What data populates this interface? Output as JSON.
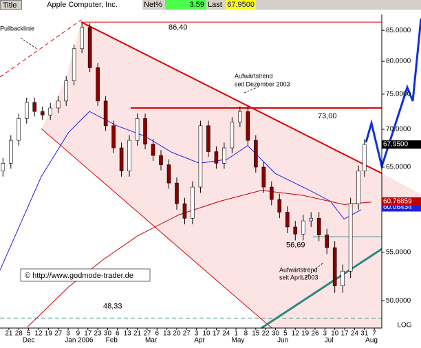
{
  "chart_data": {
    "type": "candlestick",
    "title": "Apple Computer, Inc.",
    "header_label": "Title",
    "net_label": "Net%",
    "net": 3.59,
    "last_label": "Last",
    "last": {
      "value": 67.95,
      "label": "67.9500"
    },
    "copyright": "© http://www.godmode-trader.de",
    "scale_label": "LOG",
    "log_scale": true,
    "annotations": [
      "Pullbacklinie",
      "Aufwärtstrend",
      "seit Dezember 2003",
      "Aufwärtstrend",
      "seit April 2003"
    ],
    "xlim": [
      -4.5,
      188.8
    ],
    "ylim": [
      47.4,
      87.7
    ],
    "yticks": [
      {
        "value": 85,
        "label": "85.0000"
      },
      {
        "value": 80,
        "label": "80.0000"
      },
      {
        "value": 75,
        "label": "75.0000"
      },
      {
        "value": 70,
        "label": "70.0000"
      },
      {
        "value": 65,
        "label": "65.0000"
      },
      {
        "value": 55,
        "label": "55.0000"
      },
      {
        "value": 50,
        "label": "50.0000"
      }
    ],
    "xticks": [
      {
        "value": 0,
        "label": "21"
      },
      {
        "value": 5,
        "label": "28"
      },
      {
        "value": 10,
        "label": "5"
      },
      {
        "value": 15,
        "label": "12"
      },
      {
        "value": 20,
        "label": "19"
      },
      {
        "value": 25,
        "label": "27"
      },
      {
        "value": 30,
        "label": "3"
      },
      {
        "value": 35,
        "label": "9"
      },
      {
        "value": 40,
        "label": "17"
      },
      {
        "value": 45,
        "label": "23"
      },
      {
        "value": 50,
        "label": "30"
      },
      {
        "value": 55,
        "label": "6"
      },
      {
        "value": 60,
        "label": "13"
      },
      {
        "value": 65,
        "label": "21"
      },
      {
        "value": 70,
        "label": "27"
      },
      {
        "value": 75,
        "label": "6"
      },
      {
        "value": 80,
        "label": "13"
      },
      {
        "value": 85,
        "label": "20"
      },
      {
        "value": 90,
        "label": "27"
      },
      {
        "value": 95,
        "label": "3"
      },
      {
        "value": 100,
        "label": "10"
      },
      {
        "value": 105,
        "label": "17"
      },
      {
        "value": 110,
        "label": "24"
      },
      {
        "value": 115,
        "label": "1"
      },
      {
        "value": 120,
        "label": "8"
      },
      {
        "value": 125,
        "label": "15"
      },
      {
        "value": 130,
        "label": "22"
      },
      {
        "value": 135,
        "label": "30"
      },
      {
        "value": 140,
        "label": "5"
      },
      {
        "value": 145,
        "label": "12"
      },
      {
        "value": 150,
        "label": "19"
      },
      {
        "value": 155,
        "label": "26"
      },
      {
        "value": 160,
        "label": "3"
      },
      {
        "value": 165,
        "label": "10"
      },
      {
        "value": 170,
        "label": "17"
      },
      {
        "value": 175,
        "label": "24"
      },
      {
        "value": 180,
        "label": "31"
      },
      {
        "value": 185,
        "label": "7"
      }
    ],
    "month_labels": [
      {
        "value": 10,
        "label": "Dec"
      },
      {
        "value": 35.5,
        "label": "Jan 2006"
      },
      {
        "value": 52,
        "label": "Feb"
      },
      {
        "value": 72,
        "label": "Mar"
      },
      {
        "value": 96.5,
        "label": "Apr"
      },
      {
        "value": 116,
        "label": "May"
      },
      {
        "value": 138.7,
        "label": "Jun"
      },
      {
        "value": 162,
        "label": "Jul"
      },
      {
        "value": 183.6,
        "label": "Aug"
      }
    ],
    "levels": [
      {
        "value": 86.4,
        "label": "86,40",
        "color": "#e00000"
      },
      {
        "value": 73.0,
        "label": "73,00",
        "color": "#e00000"
      },
      {
        "value": 56.69,
        "label": "56,69",
        "color": "#2a8a80"
      },
      {
        "value": 48.33,
        "label": "48,33",
        "color": "#2a8a80"
      }
    ],
    "candles": {
      "up_color": "#ffffff",
      "down_color": "#8b0000",
      "x": [
        -3,
        1,
        5,
        9,
        13,
        17,
        21,
        25,
        29,
        33,
        37,
        41,
        45,
        49,
        53,
        57,
        61,
        65,
        69,
        73,
        77,
        81,
        85,
        89,
        93,
        97,
        101,
        105,
        109,
        113,
        117,
        121,
        125,
        129,
        133,
        137,
        141,
        145,
        149,
        153,
        157,
        161,
        165,
        169,
        173,
        177,
        180
      ],
      "open": [
        64.5,
        65.5,
        68.5,
        71.5,
        73.8,
        72.5,
        72.0,
        73.0,
        74.0,
        77.0,
        82.0,
        85.5,
        79.0,
        74.0,
        70.5,
        67.5,
        64.5,
        68.5,
        71.5,
        68.0,
        66.5,
        65.3,
        63.0,
        60.5,
        58.8,
        62.5,
        70.5,
        67.0,
        65.5,
        67.5,
        71.0,
        72.5,
        68.5,
        65.0,
        62.5,
        61.0,
        59.5,
        57.8,
        57.0,
        58.5,
        58.8,
        56.9,
        55.5,
        51.5,
        53.0,
        60.5,
        64.5
      ],
      "high": [
        66.2,
        69.2,
        72.2,
        74.5,
        74.5,
        73.2,
        73.7,
        74.7,
        77.7,
        82.7,
        86.2,
        86.2,
        79.7,
        74.7,
        71.2,
        68.2,
        69.2,
        72.2,
        72.2,
        68.7,
        67.2,
        66.0,
        63.7,
        61.2,
        63.2,
        71.2,
        71.2,
        67.7,
        68.2,
        71.7,
        73.2,
        73.2,
        69.2,
        65.7,
        63.2,
        61.7,
        60.2,
        58.5,
        59.2,
        59.5,
        59.5,
        57.6,
        56.2,
        53.7,
        61.2,
        65.2,
        68.65
      ],
      "low": [
        63.8,
        64.8,
        67.8,
        70.8,
        71.8,
        71.3,
        71.3,
        72.3,
        73.3,
        76.3,
        81.3,
        78.3,
        73.3,
        69.8,
        66.8,
        63.8,
        63.8,
        67.8,
        67.3,
        65.8,
        64.6,
        62.3,
        59.8,
        58.1,
        58.1,
        61.8,
        66.3,
        64.8,
        64.8,
        66.8,
        70.3,
        67.8,
        64.3,
        61.8,
        60.3,
        58.8,
        57.1,
        56.3,
        56.3,
        57.8,
        56.2,
        54.8,
        50.8,
        50.8,
        52.3,
        59.8,
        63.8
      ],
      "close": [
        65.5,
        68.5,
        71.5,
        73.8,
        72.5,
        72.0,
        73.0,
        74.0,
        77.0,
        82.0,
        85.5,
        79.0,
        74.0,
        70.5,
        67.5,
        64.5,
        68.5,
        71.5,
        68.0,
        66.5,
        65.3,
        63.0,
        60.5,
        58.8,
        62.5,
        70.5,
        67.0,
        65.5,
        67.5,
        71.0,
        72.5,
        68.5,
        65.0,
        62.5,
        61.0,
        59.5,
        57.8,
        57.0,
        58.5,
        58.8,
        56.9,
        55.5,
        51.5,
        53.0,
        60.5,
        64.5,
        67.95
      ]
    },
    "series": [
      {
        "color": "#2020e0",
        "x": [
          -4.5,
          16.4,
          30.3,
          40.8,
          54.7,
          68.6,
          82.6,
          96.5,
          110.5,
          120.9,
          134.8,
          152.3,
          162.7,
          169.7,
          178.4
        ],
        "values": [
          53.1,
          63.8,
          69.6,
          72.5,
          70.5,
          69.1,
          66.9,
          65.5,
          66.0,
          67.8,
          64.2,
          62.1,
          60.8,
          58.7,
          59.8
        ],
        "last_value": 60.06434
      },
      {
        "color": "#c00000",
        "x": [
          9.4,
          30.3,
          47.7,
          65.2,
          86.1,
          107,
          127.9,
          148.8,
          169.7,
          183.6
        ],
        "values": [
          47.5,
          51.4,
          54.2,
          56.8,
          59.2,
          60.8,
          62.1,
          61.5,
          60.4,
          60.7
        ],
        "last_value": 60.76859
      }
    ]
  }
}
